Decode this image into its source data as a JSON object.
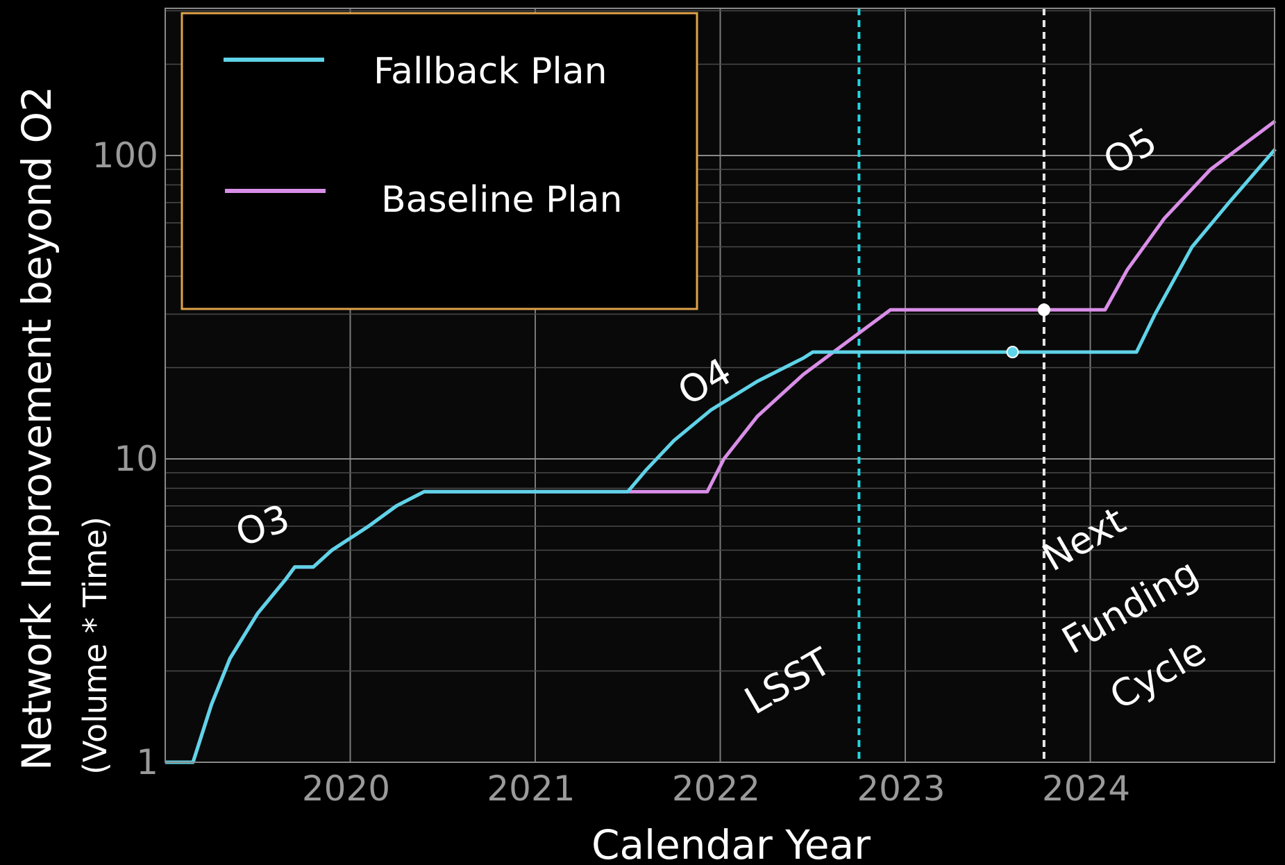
{
  "chart_data": {
    "type": "line",
    "title": "",
    "xlabel": "Calendar Year",
    "ylabel": "Network Improvement beyond O2",
    "ylabel_sub": "(Volume * Time)",
    "xlim": [
      2019.0,
      2025.0
    ],
    "ylim": [
      1,
      300
    ],
    "y_scale": "log",
    "grid": true,
    "x_ticks": [
      {
        "value": 2020,
        "label": "2020"
      },
      {
        "value": 2021,
        "label": "2021"
      },
      {
        "value": 2022,
        "label": "2022"
      },
      {
        "value": 2023,
        "label": "2023"
      },
      {
        "value": 2024,
        "label": "2024"
      }
    ],
    "y_ticks": [
      {
        "value": 1,
        "label": "1"
      },
      {
        "value": 10,
        "label": "10"
      },
      {
        "value": 100,
        "label": "100"
      }
    ],
    "legend": {
      "placement": "top-left",
      "entries": [
        {
          "label": "Fallback Plan",
          "color": "#5fd3e8"
        },
        {
          "label": "Baseline Plan",
          "color": "#d98ee8"
        }
      ]
    },
    "series": [
      {
        "name": "Fallback Plan",
        "color": "#5fd3e8",
        "points": [
          [
            2019.0,
            1.0
          ],
          [
            2019.15,
            1.0
          ],
          [
            2019.25,
            1.55
          ],
          [
            2019.35,
            2.2
          ],
          [
            2019.5,
            3.1
          ],
          [
            2019.65,
            4.0
          ],
          [
            2019.7,
            4.4
          ],
          [
            2019.8,
            4.4
          ],
          [
            2019.9,
            5.0
          ],
          [
            2020.1,
            6.0
          ],
          [
            2020.25,
            7.0
          ],
          [
            2020.4,
            7.8
          ],
          [
            2021.5,
            7.8
          ],
          [
            2021.6,
            9.2
          ],
          [
            2021.75,
            11.5
          ],
          [
            2021.95,
            14.5
          ],
          [
            2022.2,
            18.0
          ],
          [
            2022.45,
            21.5
          ],
          [
            2022.5,
            22.5
          ],
          [
            2024.25,
            22.5
          ],
          [
            2024.35,
            30.0
          ],
          [
            2024.55,
            50.0
          ],
          [
            2024.75,
            70.0
          ],
          [
            2025.0,
            105.0
          ]
        ]
      },
      {
        "name": "Baseline Plan",
        "color": "#d98ee8",
        "points": [
          [
            2019.0,
            1.0
          ],
          [
            2019.15,
            1.0
          ],
          [
            2019.25,
            1.55
          ],
          [
            2019.35,
            2.2
          ],
          [
            2019.5,
            3.1
          ],
          [
            2019.65,
            4.0
          ],
          [
            2019.7,
            4.4
          ],
          [
            2019.8,
            4.4
          ],
          [
            2019.9,
            5.0
          ],
          [
            2020.1,
            6.0
          ],
          [
            2020.25,
            7.0
          ],
          [
            2020.4,
            7.8
          ],
          [
            2021.93,
            7.8
          ],
          [
            2022.02,
            10.0
          ],
          [
            2022.2,
            13.8
          ],
          [
            2022.45,
            19.0
          ],
          [
            2022.75,
            26.0
          ],
          [
            2022.92,
            31.0
          ],
          [
            2024.08,
            31.0
          ],
          [
            2024.2,
            42.0
          ],
          [
            2024.4,
            62.0
          ],
          [
            2024.65,
            90.0
          ],
          [
            2025.0,
            130.0
          ]
        ]
      }
    ],
    "vertical_lines": [
      {
        "x": 2022.75,
        "color": "#22d4e0",
        "label": "LSST"
      },
      {
        "x": 2023.75,
        "color": "#e8e8e8",
        "label": "Next Funding Cycle"
      }
    ],
    "markers": [
      {
        "x": 2023.58,
        "y": 22.5,
        "color": "#5fd3e8"
      },
      {
        "x": 2023.75,
        "y": 31.0,
        "color": "#ffffff"
      }
    ],
    "annotations": [
      {
        "text": "O3",
        "x": 2019.55,
        "y": 5.5,
        "rotate": -20
      },
      {
        "text": "O4",
        "x": 2021.95,
        "y": 16.5,
        "rotate": -30
      },
      {
        "text": "O5",
        "x": 2024.25,
        "y": 95,
        "rotate": -30
      },
      {
        "text": "LSST",
        "x": 2022.4,
        "y": 1.7,
        "rotate": -30
      },
      {
        "text": "Next",
        "x": 2024.0,
        "y": 5.0,
        "rotate": -30
      },
      {
        "text": "Funding",
        "x": 2024.25,
        "y": 3.0,
        "rotate": -30
      },
      {
        "text": "Cycle",
        "x": 2024.4,
        "y": 1.8,
        "rotate": -30
      }
    ]
  }
}
